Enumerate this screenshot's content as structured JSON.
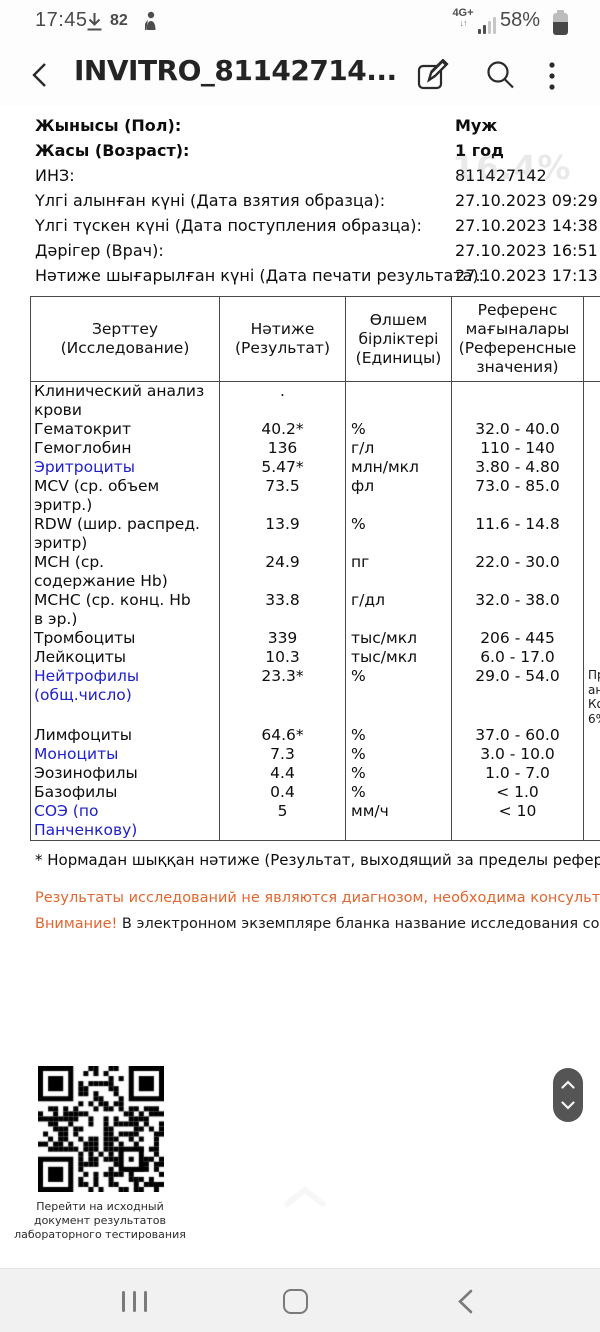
{
  "status_bar": {
    "time": "17:45",
    "notification_count": "82",
    "network": "4G+",
    "battery_percent": "58%"
  },
  "app_bar": {
    "title": "INVITRO_81142714..."
  },
  "zoom_toast": "16.4%",
  "patient_info": [
    {
      "label": "Жынысы (Пол):",
      "value": "Муж",
      "bold": true
    },
    {
      "label": "Жасы (Возраст):",
      "value": "1 год",
      "bold": true
    },
    {
      "label": "ИНЗ:",
      "value": "811427142",
      "bold": false
    },
    {
      "label": "Үлгі алынған күні (Дата взятия образца):",
      "value": "27.10.2023 09:29",
      "bold": false
    },
    {
      "label": "Үлгі түскен күні (Дата поступления образца):",
      "value": "27.10.2023 14:38",
      "bold": false
    },
    {
      "label": "Дәрігер (Врач):",
      "value": "27.10.2023 16:51",
      "bold": false
    },
    {
      "label": "Нәтиже шығарылған күні (Дата печати результата):",
      "value": "27.10.2023 17:13",
      "bold": false
    }
  ],
  "table": {
    "headers": [
      "Зерттеу\n(Исследование)",
      "Нәтиже\n(Результат)",
      "Өлшем\nбірліктері\n(Единицы)",
      "Референс\nмағыналары\n(Референсные\nзначения)",
      ""
    ],
    "rows": [
      {
        "name": "Клинический анализ\nкрови",
        "link": false,
        "result": ".",
        "unit": "",
        "ref": "",
        "comment": ""
      },
      {
        "name": "Гематокрит",
        "link": false,
        "result": "40.2*",
        "unit": "%",
        "ref": "32.0 - 40.0",
        "comment": ""
      },
      {
        "name": "Гемоглобин",
        "link": false,
        "result": "136",
        "unit": "г/л",
        "ref": "110 - 140",
        "comment": ""
      },
      {
        "name": "Эритроциты",
        "link": true,
        "result": "5.47*",
        "unit": "млн/мкл",
        "ref": "3.80 - 4.80",
        "comment": ""
      },
      {
        "name": "MCV (ср. объем\nэритр.)",
        "link": false,
        "result": "73.5",
        "unit": "фл",
        "ref": "73.0 - 85.0",
        "comment": ""
      },
      {
        "name": "RDW (шир. распред.\nэритр)",
        "link": false,
        "result": "13.9",
        "unit": "%",
        "ref": "11.6 - 14.8",
        "comment": ""
      },
      {
        "name": "MCH (ср.\nсодержание Hb)",
        "link": false,
        "result": "24.9",
        "unit": "пг",
        "ref": "22.0 - 30.0",
        "comment": ""
      },
      {
        "name": "MCHC (ср. конц. Hb\nв эр.)",
        "link": false,
        "result": "33.8",
        "unit": "г/дл",
        "ref": "32.0 - 38.0",
        "comment": ""
      },
      {
        "name": "Тромбоциты",
        "link": false,
        "result": "339",
        "unit": "тыс/мкл",
        "ref": "206 - 445",
        "comment": ""
      },
      {
        "name": "Лейкоциты",
        "link": false,
        "result": "10.3",
        "unit": "тыс/мкл",
        "ref": "6.0 - 17.0",
        "comment": ""
      },
      {
        "name": "Нейтрофилы\n(общ.число)",
        "link": true,
        "result": "23.3*",
        "unit": "%",
        "ref": "29.0 - 54.0",
        "comment": "Пр\nан\nКо\n6%"
      },
      {
        "name": "Лимфоциты",
        "link": false,
        "result": "64.6*",
        "unit": "%",
        "ref": "37.0 - 60.0",
        "comment": ""
      },
      {
        "name": "Моноциты",
        "link": true,
        "result": "7.3",
        "unit": "%",
        "ref": "3.0 - 10.0",
        "comment": ""
      },
      {
        "name": "Эозинофилы",
        "link": false,
        "result": "4.4",
        "unit": "%",
        "ref": "1.0 - 7.0",
        "comment": ""
      },
      {
        "name": "Базофилы",
        "link": false,
        "result": "0.4",
        "unit": "%",
        "ref": "< 1.0",
        "comment": ""
      },
      {
        "name": "СОЭ (по\nПанченкову)",
        "link": true,
        "result": "5",
        "unit": "мм/ч",
        "ref": "< 10",
        "comment": ""
      }
    ]
  },
  "footnote": "* Нормадан шыққан нәтиже (Результат, выходящий за пределы референсных значений)",
  "disclaimer": {
    "line1": "Результаты исследований не являются диагнозом, необходима консультация специалиста.",
    "line2_prefix": "Внимание!",
    "line2_rest": " В электронном экземпляре бланка название исследования содержит ссылку на ст"
  },
  "qr": {
    "caption": "Перейти на исходный\nдокумент результатов\nлабораторного тестирования"
  },
  "colors": {
    "accent_orange": "#E2662F",
    "link_blue": "#2020CC"
  }
}
